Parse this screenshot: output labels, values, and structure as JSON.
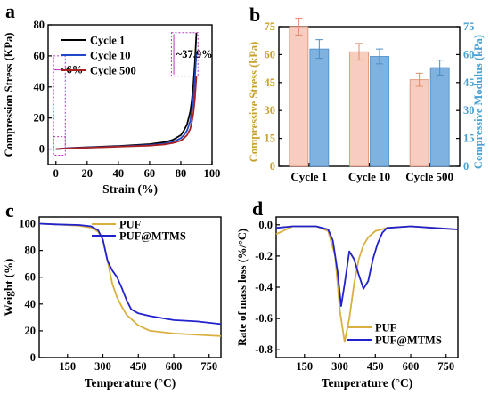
{
  "chart_data": [
    {
      "panel": "a",
      "type": "line",
      "xlabel": "Strain (%)",
      "ylabel": "Compression Stress (KPa)",
      "xlim": [
        -5,
        100
      ],
      "ylim": [
        -10,
        80
      ],
      "xticks": [
        0,
        20,
        40,
        60,
        80,
        100
      ],
      "yticks": [
        0,
        20,
        40,
        60,
        80
      ],
      "legend": "top-left",
      "series": [
        {
          "name": "Cycle 1",
          "color": "#000000",
          "x": [
            0,
            5,
            10,
            20,
            40,
            60,
            70,
            75,
            80,
            82,
            84,
            86,
            87,
            88,
            89,
            90
          ],
          "y": [
            0,
            0.4,
            0.7,
            1.2,
            2.0,
            3.2,
            4.5,
            6,
            9,
            12,
            16,
            24,
            31,
            41,
            55,
            75
          ]
        },
        {
          "name": "Cycle 10",
          "color": "#1f47c8",
          "x": [
            0,
            5,
            10,
            20,
            40,
            60,
            70,
            75,
            80,
            82,
            84,
            86,
            87,
            88,
            89,
            90
          ],
          "y": [
            0,
            0.3,
            0.6,
            1.0,
            1.7,
            2.6,
            3.5,
            4.6,
            7,
            9,
            12,
            18,
            24,
            32,
            45,
            62
          ]
        },
        {
          "name": "Cycle 500",
          "color": "#a82020",
          "x": [
            0,
            5,
            10,
            20,
            40,
            60,
            70,
            75,
            80,
            82,
            84,
            86,
            87,
            88,
            89,
            90
          ],
          "y": [
            0,
            0.3,
            0.5,
            0.9,
            1.5,
            2.2,
            3.0,
            3.9,
            5.5,
            7,
            9,
            13,
            17,
            23,
            32,
            47
          ]
        }
      ],
      "annotations": [
        "~6%",
        "~37.9%"
      ]
    },
    {
      "panel": "b",
      "type": "bar",
      "categories": [
        "Cycle 1",
        "Cycle 10",
        "Cycle 500"
      ],
      "ylabel": "Compressive Stress (kPa)",
      "y2label": "Compressive Modulus (kPa)",
      "ylim": [
        0,
        75
      ],
      "y2lim": [
        0,
        75
      ],
      "yticks": [
        0,
        15,
        30,
        45,
        60,
        75
      ],
      "series": [
        {
          "name": "Compressive Stress",
          "axis": "left",
          "color": "#f7cdc0",
          "edge": "#e08a6a",
          "values": [
            75,
            61.5,
            46.5
          ],
          "errors": [
            4.5,
            4.5,
            3.5
          ]
        },
        {
          "name": "Compressive Modulus",
          "axis": "right",
          "color": "#7fb2de",
          "edge": "#4a8cc6",
          "values": [
            63,
            59,
            53
          ],
          "errors": [
            5,
            4,
            4
          ]
        }
      ],
      "left_axis_color": "#c9a12a",
      "right_axis_color": "#4aa0d0"
    },
    {
      "panel": "c",
      "type": "line",
      "xlabel": "Temperature (°C)",
      "ylabel": "Weight (%)",
      "xlim": [
        30,
        800
      ],
      "ylim": [
        0,
        105
      ],
      "xticks": [
        150,
        300,
        450,
        600,
        750
      ],
      "yticks": [
        0,
        20,
        40,
        60,
        80,
        100
      ],
      "legend": "top-right",
      "series": [
        {
          "name": "PUF",
          "color": "#d9b040",
          "x": [
            30,
            100,
            200,
            250,
            280,
            300,
            320,
            340,
            360,
            380,
            400,
            450,
            500,
            600,
            700,
            800
          ],
          "y": [
            100,
            99.5,
            98.5,
            97,
            94,
            88,
            72,
            55,
            45,
            38,
            32,
            24,
            20,
            18,
            17,
            16
          ]
        },
        {
          "name": "PUF@MTMS",
          "color": "#2222cc",
          "x": [
            30,
            100,
            200,
            250,
            280,
            300,
            320,
            340,
            360,
            380,
            400,
            420,
            450,
            500,
            600,
            700,
            800
          ],
          "y": [
            100,
            99.5,
            99,
            98,
            95,
            88,
            72,
            65,
            60,
            52,
            43,
            36,
            33,
            31,
            28,
            27,
            25
          ]
        }
      ]
    },
    {
      "panel": "d",
      "type": "line",
      "xlabel": "Temperature (°C)",
      "ylabel": "Rate of mass loss (%/°C)",
      "xlim": [
        30,
        800
      ],
      "ylim": [
        -0.85,
        0.05
      ],
      "xticks": [
        150,
        300,
        450,
        600,
        750
      ],
      "yticks": [
        -0.8,
        -0.6,
        -0.4,
        -0.2,
        0.0
      ],
      "legend": "bottom-center",
      "series": [
        {
          "name": "PUF",
          "color": "#d9b040",
          "x": [
            30,
            100,
            200,
            250,
            280,
            300,
            320,
            340,
            360,
            380,
            400,
            420,
            450,
            500,
            600,
            700,
            800
          ],
          "y": [
            -0.06,
            -0.01,
            -0.01,
            -0.04,
            -0.2,
            -0.55,
            -0.75,
            -0.6,
            -0.38,
            -0.22,
            -0.13,
            -0.08,
            -0.04,
            -0.02,
            -0.01,
            -0.02,
            -0.03
          ]
        },
        {
          "name": "PUF@MTMS",
          "color": "#2222cc",
          "x": [
            30,
            100,
            200,
            250,
            270,
            290,
            305,
            320,
            340,
            360,
            380,
            400,
            420,
            440,
            460,
            480,
            500,
            600,
            700,
            800
          ],
          "y": [
            -0.02,
            -0.01,
            -0.01,
            -0.03,
            -0.1,
            -0.3,
            -0.52,
            -0.38,
            -0.17,
            -0.22,
            -0.32,
            -0.41,
            -0.36,
            -0.22,
            -0.12,
            -0.05,
            -0.02,
            -0.01,
            -0.02,
            -0.03
          ]
        }
      ]
    }
  ]
}
